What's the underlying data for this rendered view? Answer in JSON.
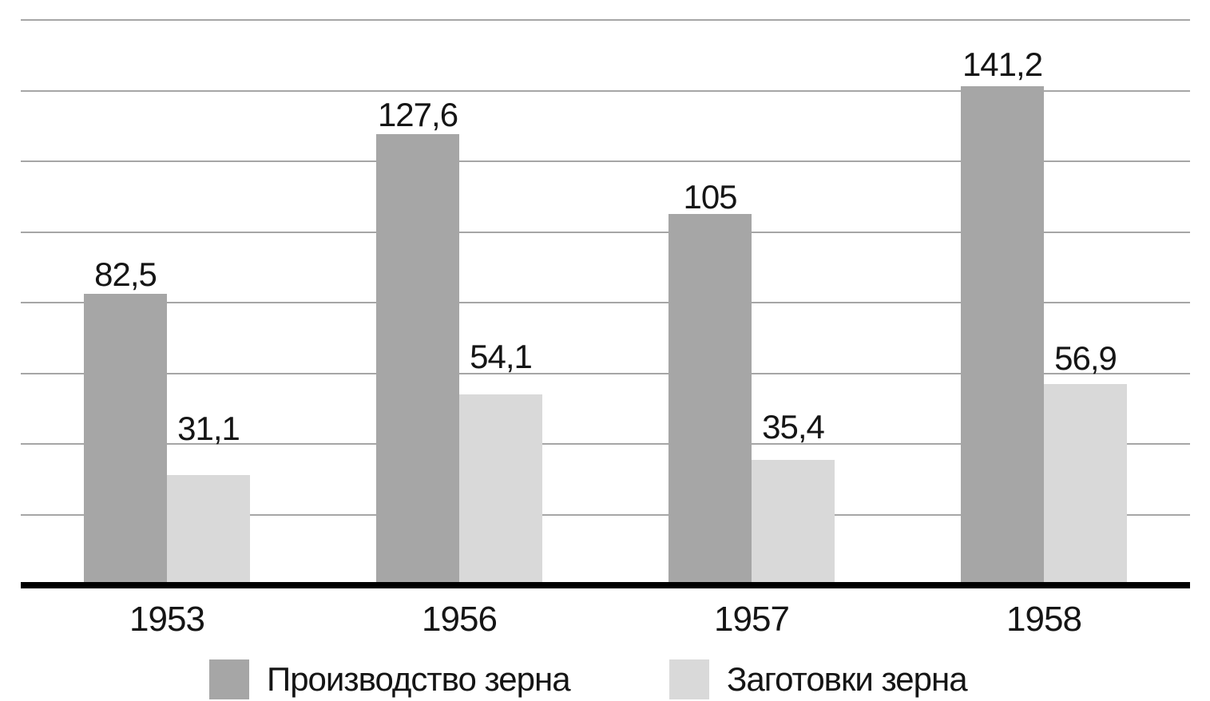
{
  "chart_data": {
    "type": "bar",
    "categories": [
      "1953",
      "1956",
      "1957",
      "1958"
    ],
    "series": [
      {
        "name": "Производство зерна",
        "values": [
          82.5,
          127.6,
          105,
          141.2
        ],
        "labels": [
          "82,5",
          "127,6",
          "105",
          "141,2"
        ],
        "color": "#a6a6a6"
      },
      {
        "name": "Заготовки зерна",
        "values": [
          31.1,
          54.1,
          35.4,
          56.9
        ],
        "labels": [
          "31,1",
          "54,1",
          "35,4",
          "56,9"
        ],
        "color": "#d9d9d9"
      }
    ],
    "title": "",
    "xlabel": "",
    "ylabel": "",
    "ylim": [
      0,
      160
    ],
    "grid_step": 20,
    "grid": "horizontal",
    "legend_position": "bottom",
    "data_labels": "outside-end",
    "colors": {
      "background": "#ffffff",
      "gridline": "#a6a6a6",
      "axis_line": "#000000",
      "text": "#151515"
    }
  }
}
